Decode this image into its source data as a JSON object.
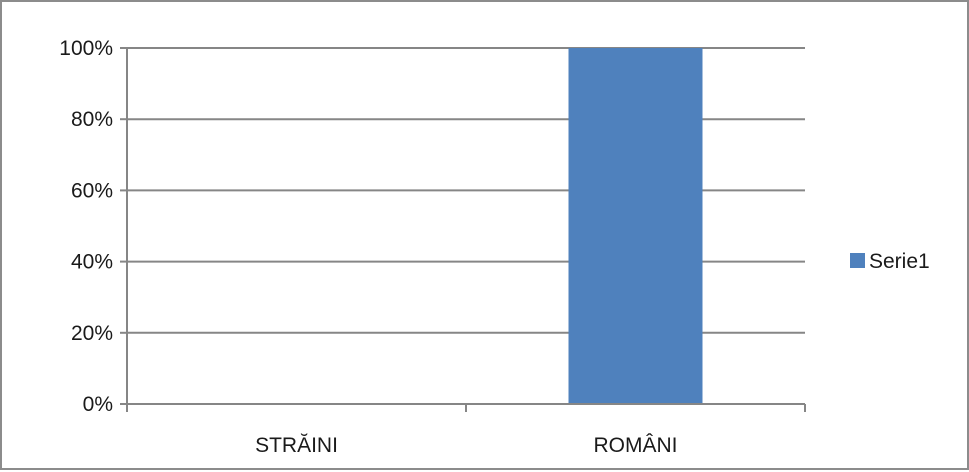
{
  "chart_data": {
    "type": "bar",
    "categories": [
      "STRĂINI",
      "ROMÂNI"
    ],
    "series": [
      {
        "name": "Serie1",
        "values": [
          0,
          100
        ],
        "color": "#4f81bd"
      }
    ],
    "yticks": [
      "0%",
      "20%",
      "40%",
      "60%",
      "80%",
      "100%"
    ],
    "ylim": [
      0,
      100
    ],
    "grid": true,
    "legend": "right",
    "gridline_color": "#868686",
    "axis_color": "#868686"
  }
}
